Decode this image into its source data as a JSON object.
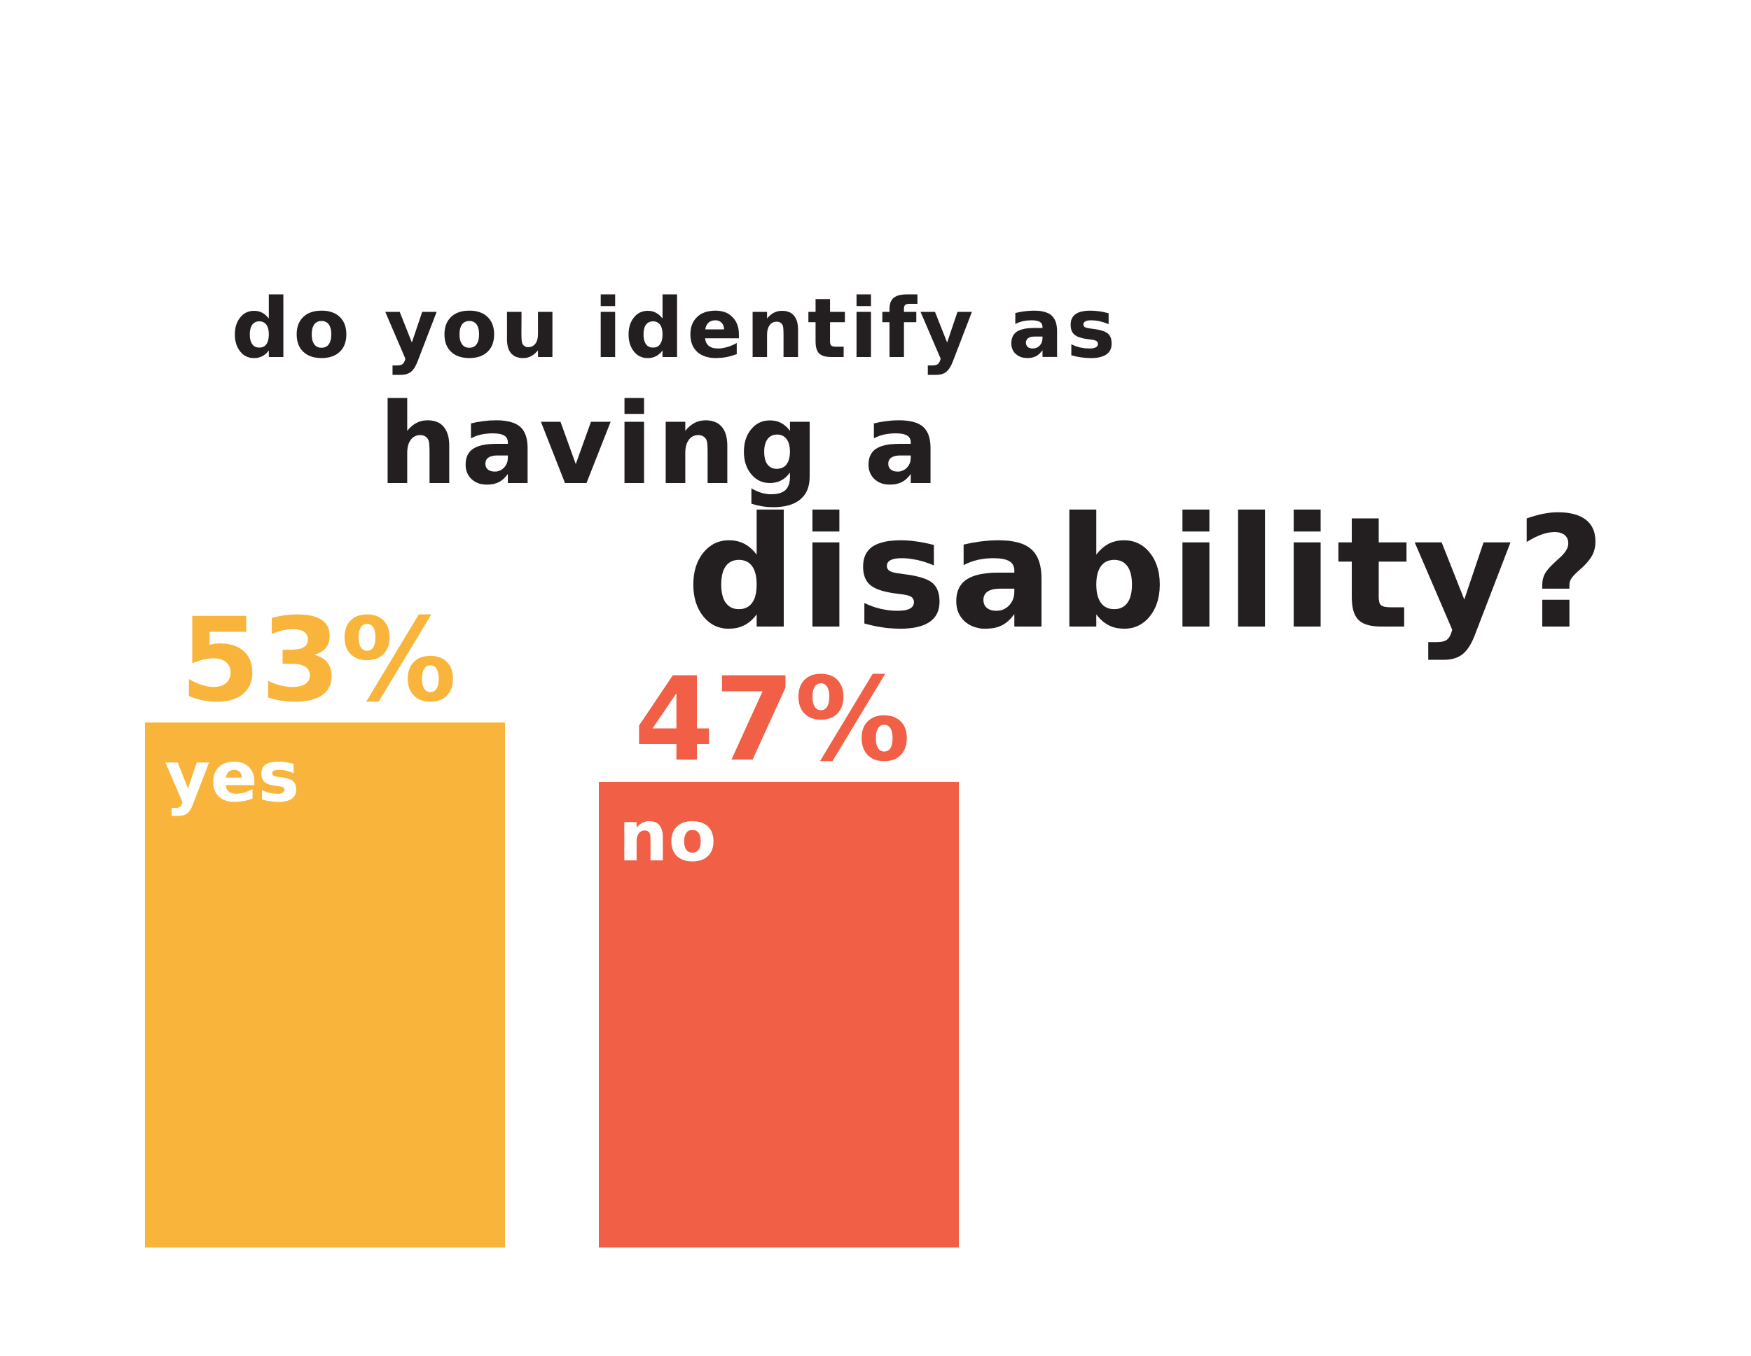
{
  "title": {
    "line1": "do you identify as",
    "line2": "having a",
    "line3": "disability?"
  },
  "colors": {
    "title": "#231f20",
    "yes": "#f9b53b",
    "no": "#f05f46",
    "label_text": "#ffffff",
    "background": "#ffffff"
  },
  "chart_data": {
    "type": "bar",
    "categories": [
      "yes",
      "no"
    ],
    "values": [
      53,
      47
    ],
    "value_labels": [
      "53%",
      "47%"
    ],
    "colors": [
      "#f9b53b",
      "#f05f46"
    ],
    "title": "do you identify as having a disability?",
    "xlabel": "",
    "ylabel": "",
    "grid": false,
    "legend": false
  }
}
